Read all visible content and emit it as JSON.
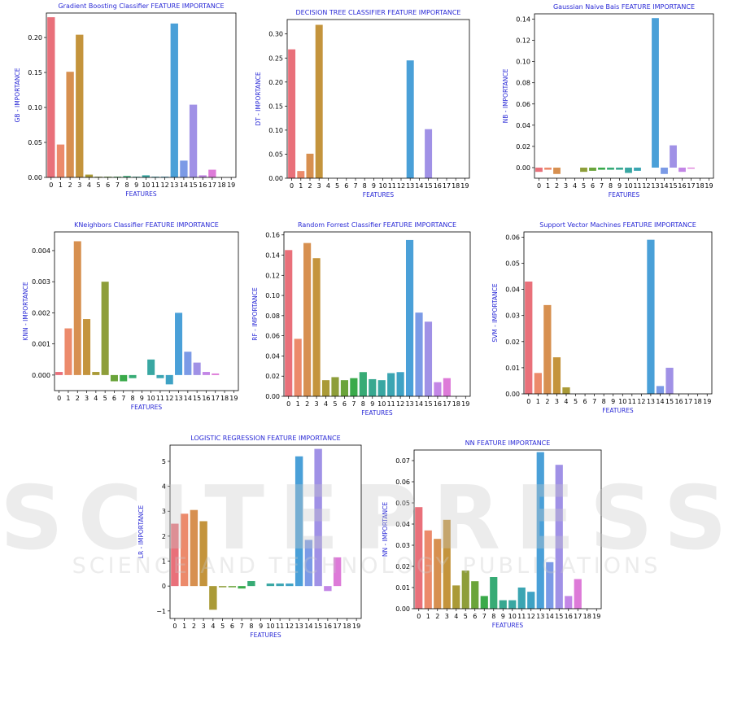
{
  "watermark": {
    "main": "SCITEPRESS",
    "sub": "SCIENCE AND TECHNOLOGY PUBLICATIONS"
  },
  "chart_data": [
    {
      "type": "bar",
      "title": "Gradient Boosting Classifier FEATURE IMPORTANCE",
      "xlabel": "FEATURES",
      "ylabel": "GB - IMPORTANCE",
      "categories": [
        "0",
        "1",
        "2",
        "3",
        "4",
        "5",
        "6",
        "7",
        "8",
        "9",
        "10",
        "11",
        "12",
        "13",
        "14",
        "15",
        "16",
        "17",
        "18",
        "19"
      ],
      "values": [
        0.229,
        0.047,
        0.151,
        0.204,
        0.004,
        0.001,
        0.001,
        0.001,
        0.002,
        0.001,
        0.003,
        0.001,
        0.001,
        0.22,
        0.024,
        0.104,
        0.003,
        0.011,
        0.0,
        0.0
      ],
      "ylim": [
        0,
        0.235
      ],
      "yticks": [
        0.0,
        0.05,
        0.1,
        0.15,
        0.2
      ],
      "yticklabels": [
        "0.00",
        "0.05",
        "0.10",
        "0.15",
        "0.20"
      ],
      "grid": false,
      "legend": false
    },
    {
      "type": "bar",
      "title": "DECISION TREE CLASSIFIER FEATURE IMPORTANCE",
      "xlabel": "FEATURES",
      "ylabel": "DT - IMPORTANCE",
      "categories": [
        "0",
        "1",
        "2",
        "3",
        "4",
        "5",
        "6",
        "7",
        "8",
        "9",
        "10",
        "11",
        "12",
        "13",
        "14",
        "15",
        "16",
        "17",
        "18",
        "19"
      ],
      "values": [
        0.268,
        0.015,
        0.051,
        0.319,
        0,
        0,
        0,
        0,
        0,
        0,
        0,
        0,
        0,
        0.245,
        0,
        0.102,
        0,
        0,
        0,
        0
      ],
      "ylim": [
        0,
        0.33
      ],
      "yticks": [
        0.0,
        0.05,
        0.1,
        0.15,
        0.2,
        0.25,
        0.3
      ],
      "yticklabels": [
        "0.00",
        "0.05",
        "0.10",
        "0.15",
        "0.20",
        "0.25",
        "0.30"
      ],
      "grid": false,
      "legend": false
    },
    {
      "type": "bar",
      "title": "Gaussian Naive Bais FEATURE IMPORTANCE",
      "xlabel": "FEATURES",
      "ylabel": "NB - IMPORTANCE",
      "categories": [
        "0",
        "1",
        "2",
        "3",
        "4",
        "5",
        "6",
        "7",
        "8",
        "9",
        "10",
        "11",
        "12",
        "13",
        "14",
        "15",
        "16",
        "17",
        "18",
        "19"
      ],
      "values": [
        -0.004,
        -0.002,
        -0.006,
        0,
        0,
        -0.004,
        -0.003,
        -0.002,
        -0.002,
        -0.002,
        -0.005,
        -0.003,
        0,
        0.141,
        -0.006,
        0.021,
        -0.004,
        -0.001,
        0,
        0
      ],
      "ylim": [
        -0.01,
        0.145
      ],
      "yticks": [
        0.0,
        0.02,
        0.04,
        0.06,
        0.08,
        0.1,
        0.12,
        0.14
      ],
      "yticklabels": [
        "0.00",
        "0.02",
        "0.04",
        "0.06",
        "0.08",
        "0.10",
        "0.12",
        "0.14"
      ],
      "grid": false,
      "legend": false
    },
    {
      "type": "bar",
      "title": "KNeighbors Classifier FEATURE IMPORTANCE",
      "xlabel": "FEATURES",
      "ylabel": "KNN - IMPORTANCE",
      "categories": [
        "0",
        "1",
        "2",
        "3",
        "4",
        "5",
        "6",
        "7",
        "8",
        "9",
        "10",
        "11",
        "12",
        "13",
        "14",
        "15",
        "16",
        "17",
        "18",
        "19"
      ],
      "values": [
        0.0001,
        0.0015,
        0.0043,
        0.0018,
        0.0001,
        0.003,
        -0.0002,
        -0.0002,
        -0.0001,
        0,
        0.0005,
        -0.0001,
        -0.0003,
        0.002,
        0.00075,
        0.0004,
        0.0001,
        5e-05,
        0,
        0
      ],
      "ylim": [
        -0.0005,
        0.0046
      ],
      "yticks": [
        0.0,
        0.001,
        0.002,
        0.003,
        0.004
      ],
      "yticklabels": [
        "0.000",
        "0.001",
        "0.002",
        "0.003",
        "0.004"
      ],
      "grid": false,
      "legend": false
    },
    {
      "type": "bar",
      "title": "Random Forrest Classifier FEATURE IMPORTANCE",
      "xlabel": "FEATURES",
      "ylabel": "RF - IMPORTANCE",
      "categories": [
        "0",
        "1",
        "2",
        "3",
        "4",
        "5",
        "6",
        "7",
        "8",
        "9",
        "10",
        "11",
        "12",
        "13",
        "14",
        "15",
        "16",
        "17",
        "18",
        "19"
      ],
      "values": [
        0.145,
        0.057,
        0.152,
        0.137,
        0.016,
        0.019,
        0.016,
        0.018,
        0.024,
        0.017,
        0.016,
        0.023,
        0.024,
        0.155,
        0.083,
        0.074,
        0.014,
        0.018,
        0,
        0
      ],
      "ylim": [
        0,
        0.163
      ],
      "yticks": [
        0.0,
        0.02,
        0.04,
        0.06,
        0.08,
        0.1,
        0.12,
        0.14,
        0.16
      ],
      "yticklabels": [
        "0.00",
        "0.02",
        "0.04",
        "0.06",
        "0.08",
        "0.10",
        "0.12",
        "0.14",
        "0.16"
      ],
      "grid": false,
      "legend": false
    },
    {
      "type": "bar",
      "title": "Support Vector Machines FEATURE IMPORTANCE",
      "xlabel": "FEATURES",
      "ylabel": "SVM - IMPORTANCE",
      "categories": [
        "0",
        "1",
        "2",
        "3",
        "4",
        "5",
        "6",
        "7",
        "8",
        "9",
        "10",
        "11",
        "12",
        "13",
        "14",
        "15",
        "16",
        "17",
        "18",
        "19"
      ],
      "values": [
        0.043,
        0.008,
        0.034,
        0.014,
        0.0025,
        0,
        0,
        0,
        0,
        0,
        0,
        0,
        0,
        0.059,
        0.003,
        0.01,
        0,
        0,
        0,
        0
      ],
      "ylim": [
        0,
        0.062
      ],
      "yticks": [
        0.0,
        0.01,
        0.02,
        0.03,
        0.04,
        0.05,
        0.06
      ],
      "yticklabels": [
        "0.00",
        "0.01",
        "0.02",
        "0.03",
        "0.04",
        "0.05",
        "0.06"
      ],
      "grid": false,
      "legend": false
    },
    {
      "type": "bar",
      "title": "LOGISTIC REGRESSION FEATURE IMPORTANCE",
      "xlabel": "FEATURES",
      "ylabel": "LR - IMPORTANCE",
      "categories": [
        "0",
        "1",
        "2",
        "3",
        "4",
        "5",
        "6",
        "7",
        "8",
        "9",
        "10",
        "11",
        "12",
        "13",
        "14",
        "15",
        "16",
        "17",
        "18",
        "19"
      ],
      "values": [
        2.5,
        2.9,
        3.05,
        2.6,
        -0.95,
        -0.05,
        -0.05,
        -0.1,
        0.2,
        0.0,
        0.1,
        0.1,
        0.1,
        5.2,
        1.85,
        5.5,
        -0.2,
        1.15,
        0,
        0
      ],
      "ylim": [
        -1.3,
        5.65
      ],
      "yticks": [
        -1,
        0,
        1,
        2,
        3,
        4,
        5
      ],
      "yticklabels": [
        "−1",
        "0",
        "1",
        "2",
        "3",
        "4",
        "5"
      ],
      "grid": false,
      "legend": false
    },
    {
      "type": "bar",
      "title": "NN FEATURE IMPORTANCE",
      "xlabel": "FEATURES",
      "ylabel": "NN - IMPORTANCE",
      "categories": [
        "0",
        "1",
        "2",
        "3",
        "4",
        "5",
        "6",
        "7",
        "8",
        "9",
        "10",
        "11",
        "12",
        "13",
        "14",
        "15",
        "16",
        "17",
        "18",
        "19"
      ],
      "values": [
        0.048,
        0.037,
        0.033,
        0.042,
        0.011,
        0.018,
        0.013,
        0.006,
        0.015,
        0.004,
        0.004,
        0.01,
        0.008,
        0.074,
        0.022,
        0.068,
        0.006,
        0.014,
        0,
        0
      ],
      "ylim": [
        0,
        0.075
      ],
      "yticks": [
        0.0,
        0.01,
        0.02,
        0.03,
        0.04,
        0.05,
        0.06,
        0.07
      ],
      "yticklabels": [
        "0.00",
        "0.01",
        "0.02",
        "0.03",
        "0.04",
        "0.05",
        "0.06",
        "0.07"
      ],
      "grid": false,
      "legend": false
    }
  ],
  "palette": [
    "#e9707a",
    "#ec8a6b",
    "#d79050",
    "#c4943c",
    "#aa9a37",
    "#8e9e3a",
    "#6aa43a",
    "#3aaa4a",
    "#37ab75",
    "#38a890",
    "#39a7a2",
    "#3ba5b2",
    "#3ea2c4",
    "#4aa0d8",
    "#7b9ae6",
    "#a091e6",
    "#c386e6",
    "#dd7ad8",
    "#e876bd",
    "#ea73a3"
  ]
}
